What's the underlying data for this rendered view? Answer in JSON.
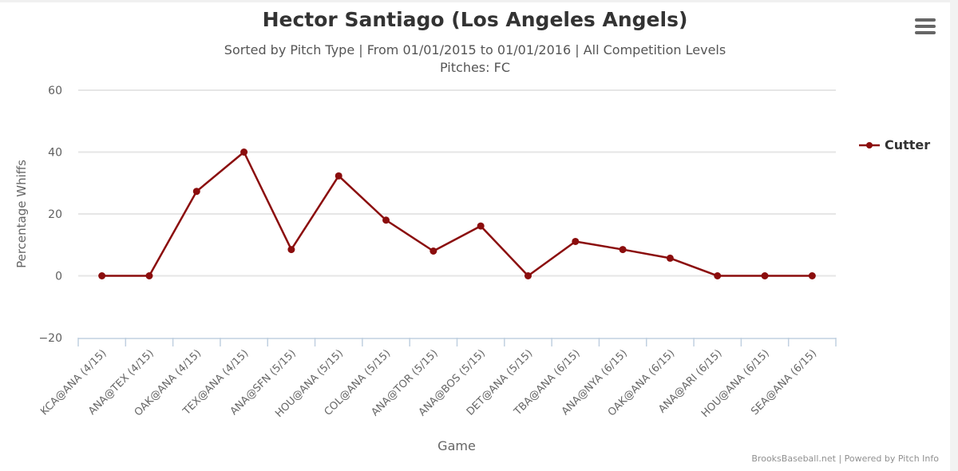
{
  "chart": {
    "title": "Hector Santiago (Los Angeles Angels)",
    "subtitle_line1": "Sorted by Pitch Type | From 01/01/2015 to 01/01/2016 | All Competition Levels",
    "subtitle_line2": "Pitches: FC",
    "menu_icon": "hamburger-menu-icon",
    "credits": "BrooksBaseball.net | Powered by Pitch Info",
    "line_color": "#8b0d0d",
    "grid_color": "#e6e6e6",
    "axis_color": "#c0d0e0"
  },
  "chart_data": {
    "type": "line",
    "title": "Hector Santiago (Los Angeles Angels)",
    "subtitle": "Sorted by Pitch Type | From 01/01/2015 to 01/01/2016 | All Competition Levels — Pitches: FC",
    "xlabel": "Game",
    "ylabel": "Percentage Whiffs",
    "ylim": [
      -20,
      60
    ],
    "yticks": [
      -20,
      0,
      20,
      40,
      60
    ],
    "grid": true,
    "legend_position": "right",
    "categories": [
      "KCA@ANA (4/15)",
      "ANA@TEX (4/15)",
      "OAK@ANA (4/15)",
      "TEX@ANA (4/15)",
      "ANA@SFN (5/15)",
      "HOU@ANA (5/15)",
      "COL@ANA (5/15)",
      "ANA@TOR (5/15)",
      "ANA@BOS (5/15)",
      "DET@ANA (5/15)",
      "TBA@ANA (6/15)",
      "ANA@NYA (6/15)",
      "OAK@ANA (6/15)",
      "ANA@ARI (6/15)",
      "HOU@ANA (6/15)",
      "SEA@ANA (6/15)"
    ],
    "series": [
      {
        "name": "Cutter",
        "color": "#8b0d0d",
        "values": [
          0,
          0,
          27.3,
          40,
          8.5,
          32.3,
          18,
          8,
          16.1,
          0,
          11.1,
          8.5,
          5.7,
          0,
          0,
          0
        ]
      }
    ]
  }
}
